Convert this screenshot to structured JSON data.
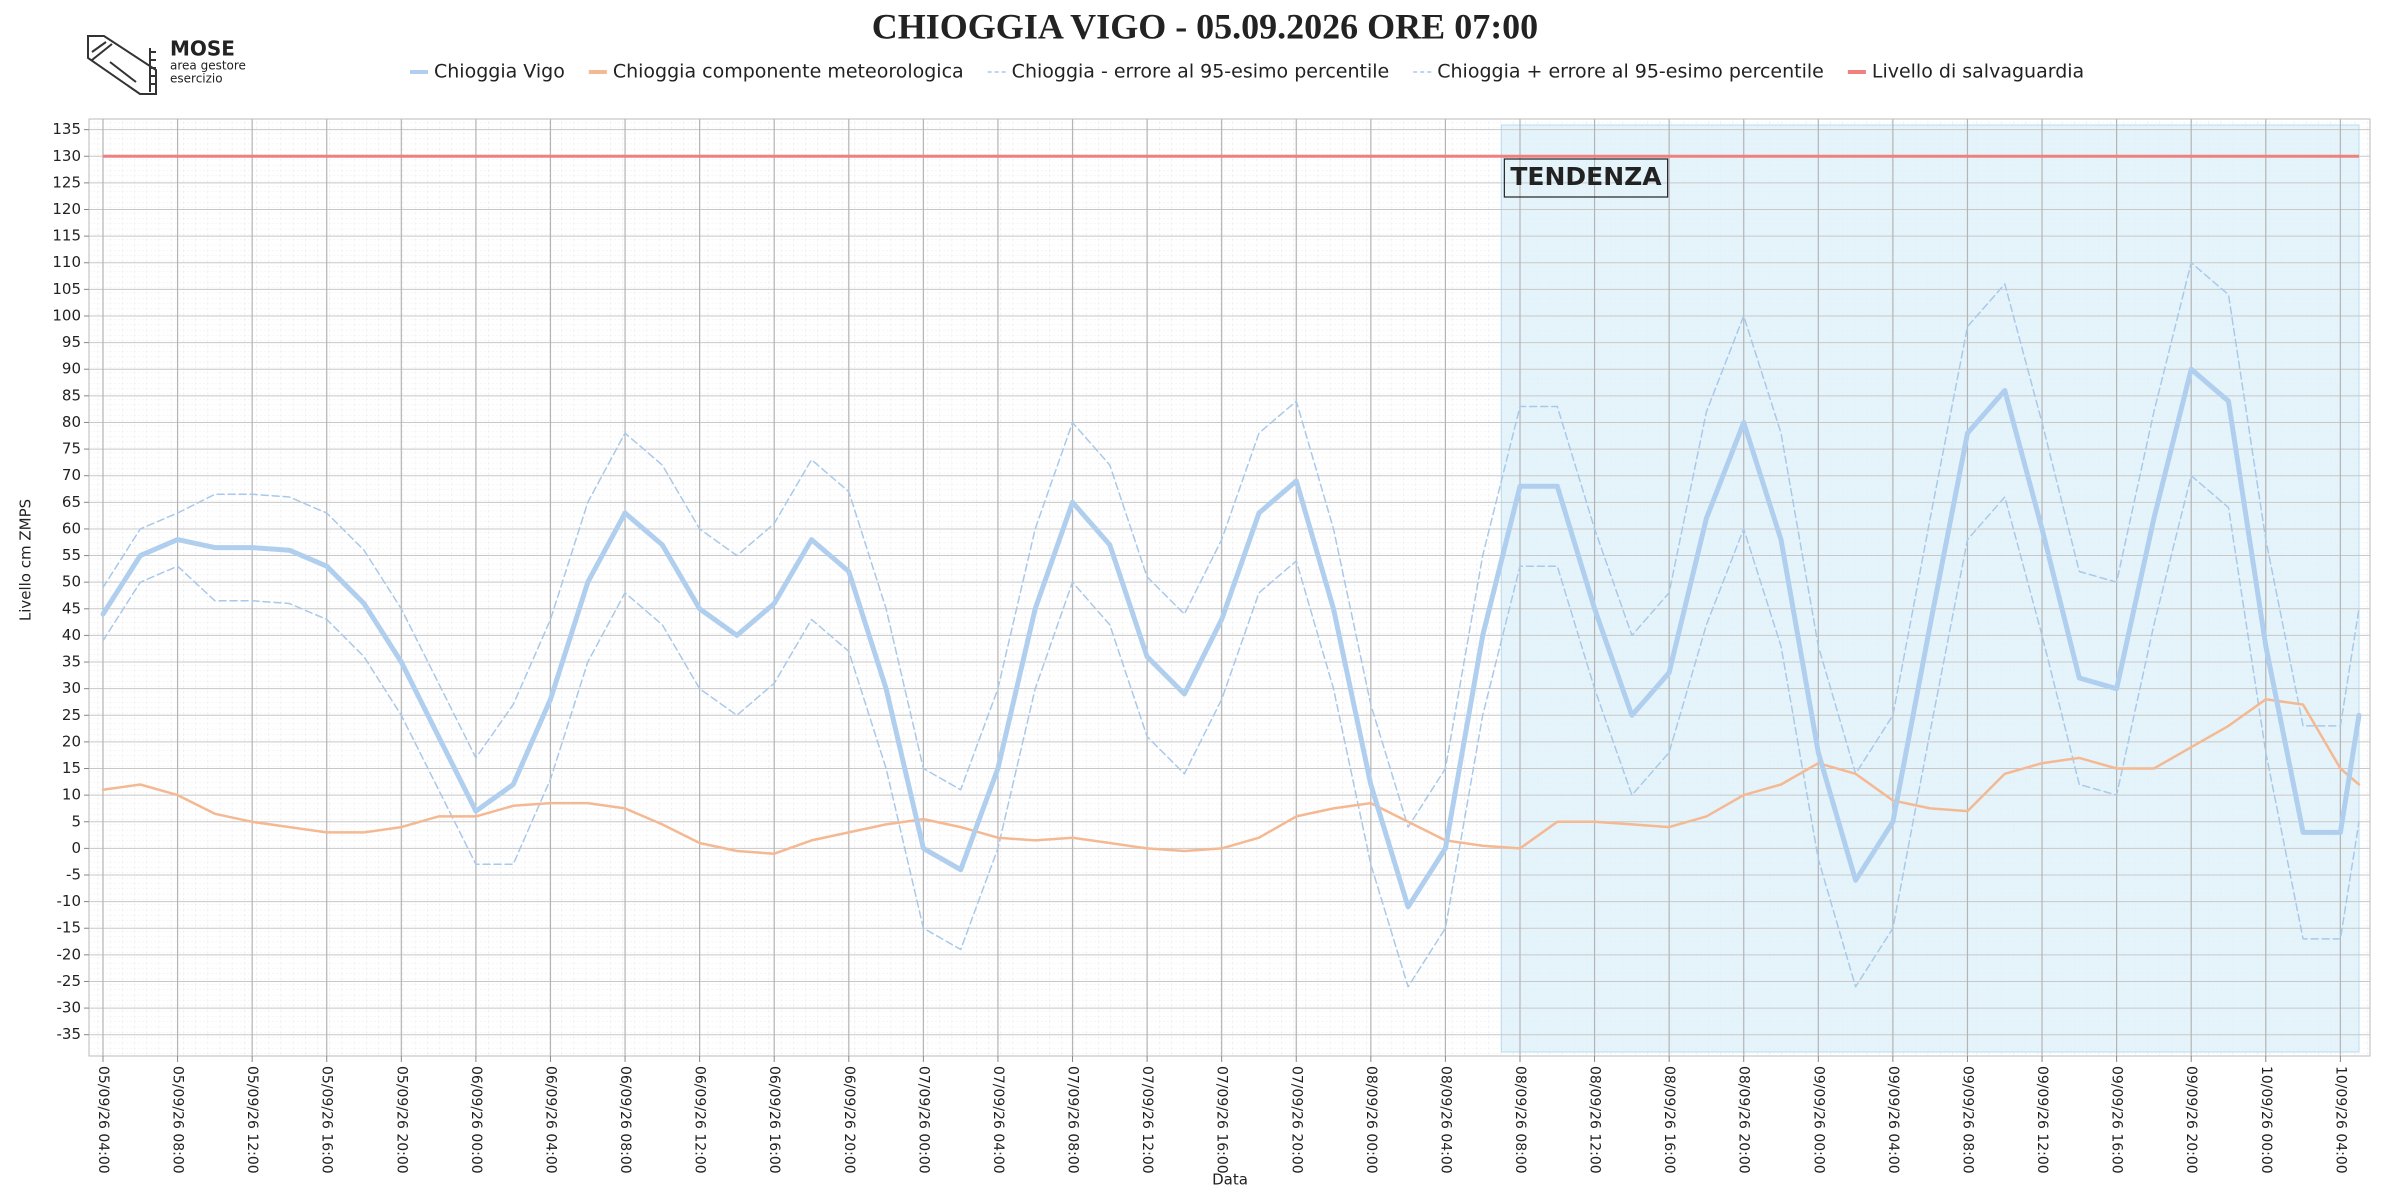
{
  "logo": {
    "name": "MOSE",
    "lines": [
      "area gestore",
      "esercizio"
    ]
  },
  "chart_data": {
    "type": "line",
    "title": "CHIOGGIA VIGO - 05.09.2026 ORE 07:00",
    "x_label": "Data",
    "y_label": "Livello cm ZMPS",
    "x": [
      "05/09/26 04:00",
      "05/09/26 06:00",
      "05/09/26 08:00",
      "05/09/26 10:00",
      "05/09/26 12:00",
      "05/09/26 14:00",
      "05/09/26 16:00",
      "05/09/26 18:00",
      "05/09/26 20:00",
      "05/09/26 22:00",
      "06/09/26 00:00",
      "06/09/26 02:00",
      "06/09/26 04:00",
      "06/09/26 06:00",
      "06/09/26 08:00",
      "06/09/26 10:00",
      "06/09/26 12:00",
      "06/09/26 14:00",
      "06/09/26 16:00",
      "06/09/26 18:00",
      "06/09/26 20:00",
      "06/09/26 22:00",
      "07/09/26 00:00",
      "07/09/26 02:00",
      "07/09/26 04:00",
      "07/09/26 06:00",
      "07/09/26 08:00",
      "07/09/26 10:00",
      "07/09/26 12:00",
      "07/09/26 14:00",
      "07/09/26 16:00",
      "07/09/26 18:00",
      "07/09/26 20:00",
      "07/09/26 22:00",
      "08/09/26 00:00",
      "08/09/26 02:00",
      "08/09/26 04:00",
      "08/09/26 06:00",
      "08/09/26 08:00",
      "08/09/26 10:00",
      "08/09/26 12:00",
      "08/09/26 14:00",
      "08/09/26 16:00",
      "08/09/26 18:00",
      "08/09/26 20:00",
      "08/09/26 22:00",
      "09/09/26 00:00",
      "09/09/26 02:00",
      "09/09/26 04:00",
      "09/09/26 06:00",
      "09/09/26 08:00",
      "09/09/26 10:00",
      "09/09/26 12:00",
      "09/09/26 14:00",
      "09/09/26 16:00",
      "09/09/26 18:00",
      "09/09/26 20:00",
      "09/09/26 22:00",
      "10/09/26 00:00",
      "10/09/26 02:00",
      "10/09/26 04:00",
      "10/09/26 05:00"
    ],
    "series": [
      {
        "name": "Chioggia Vigo",
        "color": "#b0cfee",
        "line_style": "solid",
        "line_width": 5,
        "values": [
          44,
          55,
          58,
          56.5,
          56.5,
          56,
          53,
          46,
          35,
          21,
          7,
          12,
          28,
          50,
          63,
          57,
          45,
          40,
          46,
          58,
          52,
          30,
          0,
          -4,
          15,
          45,
          65,
          57,
          36,
          29,
          43,
          63,
          69,
          45,
          12,
          -11,
          0,
          40,
          68,
          68,
          45,
          25,
          33,
          62,
          80,
          58,
          18,
          -6,
          5,
          42,
          78,
          86,
          60,
          32,
          30,
          62,
          90,
          84,
          38,
          3,
          3,
          25
        ]
      },
      {
        "name": "Chioggia componente meteorologica",
        "color": "#f4b992",
        "line_style": "solid",
        "line_width": 2.5,
        "values": [
          11,
          12,
          10,
          6.5,
          5,
          4,
          3,
          3,
          4,
          6,
          6,
          8,
          8.5,
          8.5,
          7.5,
          4.5,
          1,
          -0.5,
          -1,
          1.5,
          3,
          4.5,
          5.5,
          4,
          2,
          1.5,
          2,
          1,
          0,
          -0.5,
          0,
          2,
          6,
          7.5,
          8.5,
          5,
          1.5,
          0.5,
          0,
          5,
          5,
          4.5,
          4,
          6,
          10,
          12,
          16,
          14,
          9,
          7.5,
          7,
          14,
          16,
          17,
          15,
          15,
          19,
          23,
          28,
          27,
          15,
          12
        ]
      },
      {
        "name": "Chioggia - errore al 95-esimo percentile",
        "color": "#a9c9ea",
        "line_style": "dashed",
        "line_width": 1.5,
        "values": [
          39,
          50,
          53,
          46.5,
          46.5,
          46,
          43,
          36,
          25,
          11,
          -3,
          -3,
          13,
          35,
          48,
          42,
          30,
          25,
          31,
          43,
          37,
          15,
          -15,
          -19,
          0,
          30,
          50,
          42,
          21,
          14,
          28,
          48,
          54,
          30,
          -3,
          -26,
          -15,
          25,
          53,
          53,
          30,
          10,
          18,
          42,
          60,
          38,
          -2,
          -26,
          -15,
          22,
          58,
          66,
          40,
          12,
          10,
          42,
          70,
          64,
          18,
          -17,
          -17,
          5
        ]
      },
      {
        "name": "Chioggia + errore al 95-esimo percentile",
        "color": "#a9c9ea",
        "line_style": "dashed",
        "line_width": 1.5,
        "values": [
          49,
          60,
          63,
          66.5,
          66.5,
          66,
          63,
          56,
          45,
          31,
          17,
          27,
          43,
          65,
          78,
          72,
          60,
          55,
          61,
          73,
          67,
          45,
          15,
          11,
          30,
          60,
          80,
          72,
          51,
          44,
          58,
          78,
          84,
          60,
          27,
          4,
          15,
          55,
          83,
          83,
          60,
          40,
          48,
          82,
          100,
          78,
          38,
          14,
          25,
          62,
          98,
          106,
          80,
          52,
          50,
          82,
          110,
          104,
          58,
          23,
          23,
          45
        ]
      }
    ],
    "threshold": {
      "name": "Livello di salvaguardia",
      "value": 130,
      "color": "#f08080"
    },
    "annotation": {
      "text": "TENDENZA",
      "from": "08/09/26 07:00",
      "color": "#dcf0fa"
    },
    "xlim": [
      "05/09/26 04:00",
      "10/09/26 05:00"
    ],
    "xticks": [
      "05/09/26 04:00",
      "05/09/26 08:00",
      "05/09/26 12:00",
      "05/09/26 16:00",
      "05/09/26 20:00",
      "06/09/26 00:00",
      "06/09/26 04:00",
      "06/09/26 08:00",
      "06/09/26 12:00",
      "06/09/26 16:00",
      "06/09/26 20:00",
      "07/09/26 00:00",
      "07/09/26 04:00",
      "07/09/26 08:00",
      "07/09/26 12:00",
      "07/09/26 16:00",
      "07/09/26 20:00",
      "08/09/26 00:00",
      "08/09/26 04:00",
      "08/09/26 08:00",
      "08/09/26 12:00",
      "08/09/26 16:00",
      "08/09/26 20:00",
      "09/09/26 00:00",
      "09/09/26 04:00",
      "09/09/26 08:00",
      "09/09/26 12:00",
      "09/09/26 16:00",
      "09/09/26 20:00",
      "10/09/26 00:00",
      "10/09/26 04:00"
    ],
    "ylim": [
      -39,
      137
    ],
    "yticks": [
      -35,
      -30,
      -25,
      -20,
      -15,
      -10,
      -5,
      0,
      5,
      10,
      15,
      20,
      25,
      30,
      35,
      40,
      45,
      50,
      55,
      60,
      65,
      70,
      75,
      80,
      85,
      90,
      95,
      100,
      105,
      110,
      115,
      120,
      125,
      130,
      135
    ],
    "grid": true
  }
}
